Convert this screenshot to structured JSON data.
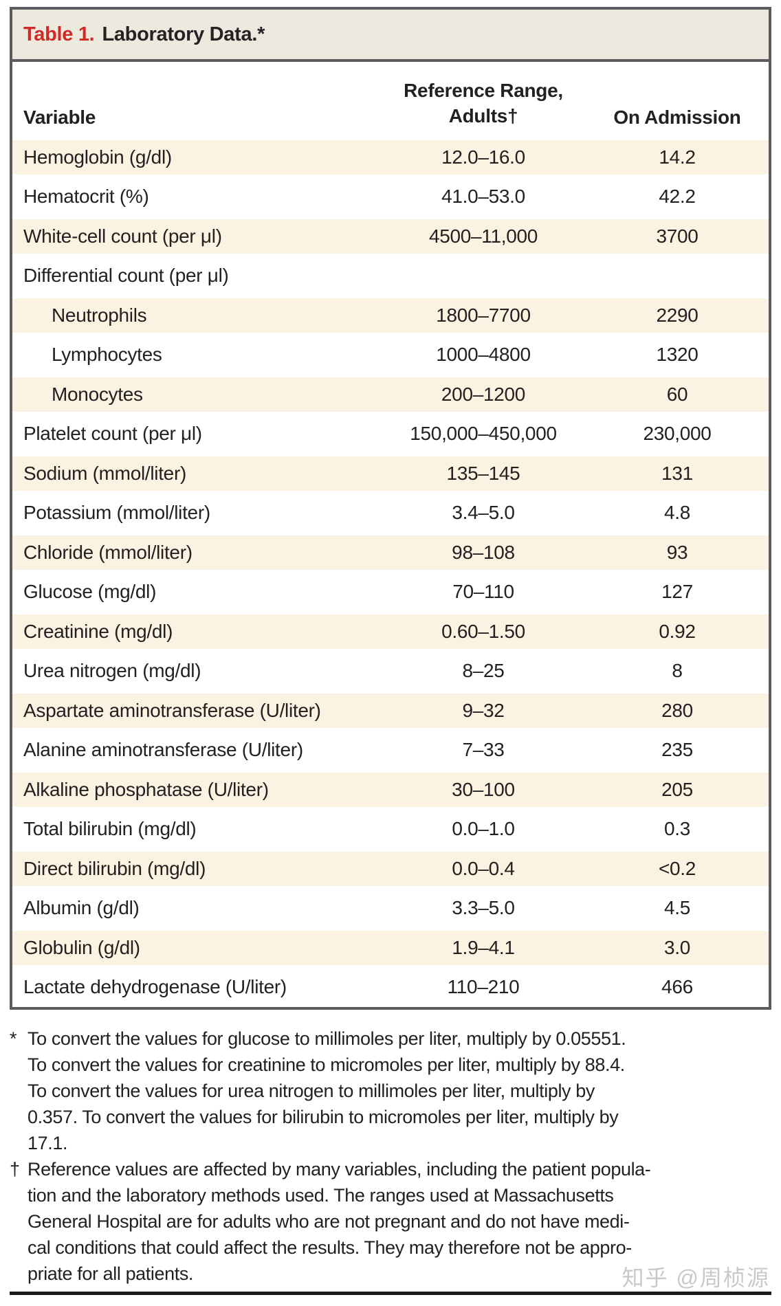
{
  "table": {
    "title_label": "Table 1.",
    "title_text": "Laboratory Data.*",
    "columns": {
      "variable": "Variable",
      "reference_range_line1": "Reference Range,",
      "reference_range_line2": "Adults†",
      "on_admission": "On Admission"
    },
    "rows": [
      {
        "variable": "Hemoglobin (g/dl)",
        "reference_range": "12.0–16.0",
        "on_admission": "14.2"
      },
      {
        "variable": "Hematocrit (%)",
        "reference_range": "41.0–53.0",
        "on_admission": "42.2"
      },
      {
        "variable": "White-cell count (per μl)",
        "reference_range": "4500–11,000",
        "on_admission": "3700"
      },
      {
        "variable": "Differential count (per μl)",
        "reference_range": "",
        "on_admission": ""
      },
      {
        "variable": "Neutrophils",
        "reference_range": "1800–7700",
        "on_admission": "2290",
        "indent": true
      },
      {
        "variable": "Lymphocytes",
        "reference_range": "1000–4800",
        "on_admission": "1320",
        "indent": true
      },
      {
        "variable": "Monocytes",
        "reference_range": "200–1200",
        "on_admission": "60",
        "indent": true
      },
      {
        "variable": "Platelet count (per μl)",
        "reference_range": "150,000–450,000",
        "on_admission": "230,000"
      },
      {
        "variable": "Sodium (mmol/liter)",
        "reference_range": "135–145",
        "on_admission": "131"
      },
      {
        "variable": "Potassium (mmol/liter)",
        "reference_range": "3.4–5.0",
        "on_admission": "4.8"
      },
      {
        "variable": "Chloride (mmol/liter)",
        "reference_range": "98–108",
        "on_admission": "93"
      },
      {
        "variable": "Glucose (mg/dl)",
        "reference_range": "70–110",
        "on_admission": "127"
      },
      {
        "variable": "Creatinine (mg/dl)",
        "reference_range": "0.60–1.50",
        "on_admission": "0.92"
      },
      {
        "variable": "Urea nitrogen (mg/dl)",
        "reference_range": "8–25",
        "on_admission": "8"
      },
      {
        "variable": "Aspartate aminotransferase (U/liter)",
        "reference_range": "9–32",
        "on_admission": "280"
      },
      {
        "variable": "Alanine aminotransferase (U/liter)",
        "reference_range": "7–33",
        "on_admission": "235"
      },
      {
        "variable": "Alkaline phosphatase (U/liter)",
        "reference_range": "30–100",
        "on_admission": "205"
      },
      {
        "variable": "Total bilirubin (mg/dl)",
        "reference_range": "0.0–1.0",
        "on_admission": "0.3"
      },
      {
        "variable": "Direct bilirubin (mg/dl)",
        "reference_range": "0.0–0.4",
        "on_admission": "<0.2"
      },
      {
        "variable": "Albumin (g/dl)",
        "reference_range": "3.3–5.0",
        "on_admission": "4.5"
      },
      {
        "variable": "Globulin (g/dl)",
        "reference_range": "1.9–4.1",
        "on_admission": "3.0"
      },
      {
        "variable": "Lactate dehydrogenase (U/liter)",
        "reference_range": "110–210",
        "on_admission": "466"
      }
    ]
  },
  "footnotes": [
    {
      "marker": "*",
      "lines": [
        "To convert the values for glucose to millimoles per liter, multiply by 0.05551.",
        "To convert the values for creatinine to micromoles per liter, multiply by 88.4.",
        "To convert the values for urea nitrogen to millimoles per liter, multiply by",
        "0.357. To convert the values for bilirubin to micromoles per liter, multiply by",
        "17.1."
      ]
    },
    {
      "marker": "†",
      "lines": [
        "Reference values are affected by many variables, including the patient popula-",
        "tion and the laboratory methods used. The ranges used at Massachusetts",
        "General Hospital are for adults who are not pregnant and do not have medi-",
        "cal conditions that could affect the results. They may therefore not be appro-",
        "priate for all patients."
      ]
    }
  ],
  "watermark": "知乎 @周桢源",
  "colors": {
    "accent_red": "#CE2B27",
    "row_shade": "#FCF2E2",
    "title_bar_bg": "#EDE9DF",
    "frame_border": "#5B5C5E",
    "text_color": "#232021",
    "rule_color": "#1A1A1A",
    "watermark_color": "#C9C9C9"
  }
}
